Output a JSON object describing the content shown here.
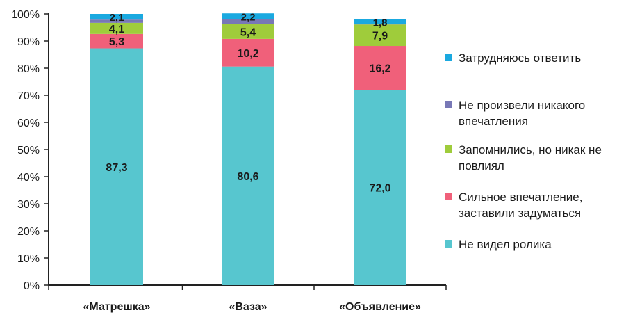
{
  "chart_data": {
    "type": "bar",
    "stacked": true,
    "categories": [
      "«Матрешка»",
      "«Ваза»",
      "«Объявление»"
    ],
    "y_ticks": [
      "0%",
      "10%",
      "20%",
      "30%",
      "40%",
      "50%",
      "60%",
      "70%",
      "80%",
      "90%",
      "100%"
    ],
    "ylim": [
      0,
      100
    ],
    "grid": false,
    "legend_position": "right",
    "series": [
      {
        "name": "Не видел ролика",
        "color": "#57c6cf",
        "values": [
          87.3,
          80.6,
          72.0
        ],
        "labels": [
          "87,3",
          "80,6",
          "72,0"
        ]
      },
      {
        "name": "Сильное впечатление, заставили задуматься",
        "color": "#f0607a",
        "values": [
          5.3,
          10.2,
          16.2
        ],
        "labels": [
          "5,3",
          "10,2",
          "16,2"
        ]
      },
      {
        "name": "Запомнились, но никак не повлиял",
        "color": "#9fcc3b",
        "values": [
          4.1,
          5.4,
          7.9
        ],
        "labels": [
          "4,1",
          "5,4",
          "7,9"
        ]
      },
      {
        "name": "Не произвели никакого впечатления",
        "color": "#7878b6",
        "values": [
          1.2,
          1.8,
          0.1
        ],
        "labels": [
          "",
          "",
          ""
        ]
      },
      {
        "name": "Затрудняюсь ответить",
        "color": "#1aa9e0",
        "values": [
          2.1,
          2.2,
          1.8
        ],
        "labels": [
          "2,1",
          "2,2",
          "1,8"
        ]
      }
    ]
  }
}
